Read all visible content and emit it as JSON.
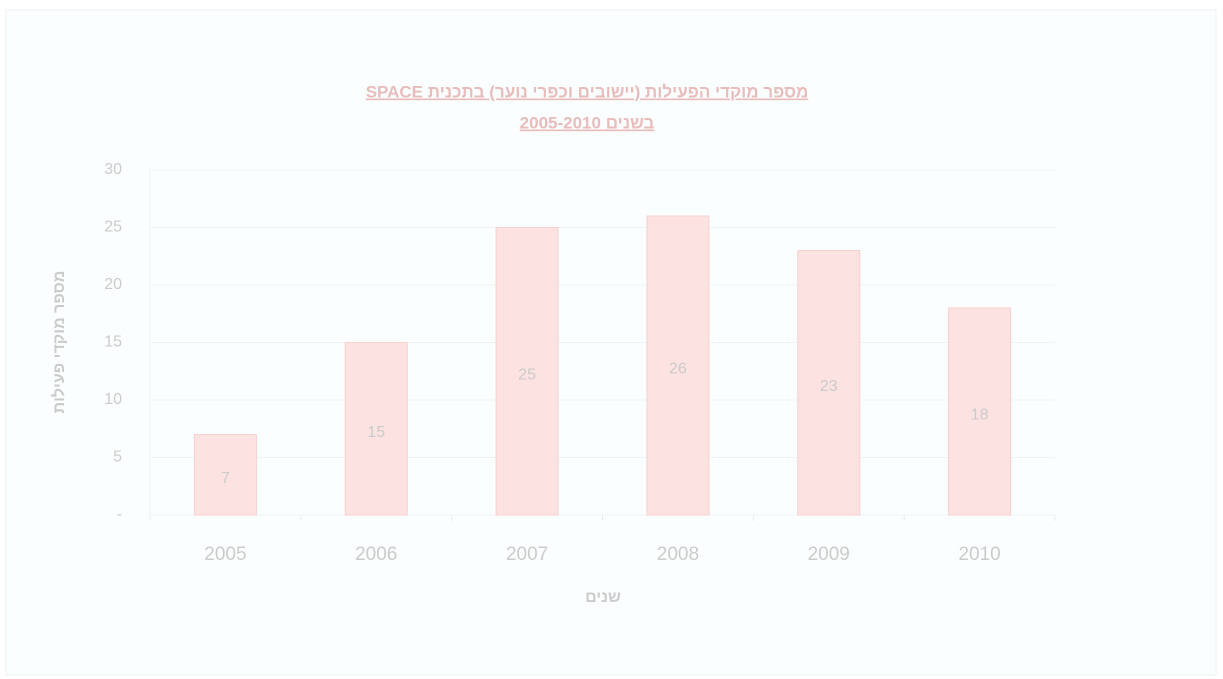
{
  "chart_data": {
    "type": "bar",
    "title": [
      "מספר מוקדי הפעילות (יישובים וכפרי נוער) בתכנית  SPACE",
      "בשנים 2005-2010"
    ],
    "x_label": "שנים",
    "y_label": "מספר מוקדי פעילות",
    "categories": [
      "2005",
      "2006",
      "2007",
      "2008",
      "2009",
      "2010"
    ],
    "values": [
      7,
      15,
      25,
      26,
      23,
      18
    ],
    "color": "#fde2e2",
    "ylim": [
      0,
      30
    ],
    "yticks": [
      {
        "value": 0,
        "label": "-"
      },
      5,
      10,
      15,
      20,
      25,
      30
    ],
    "grid": true
  }
}
